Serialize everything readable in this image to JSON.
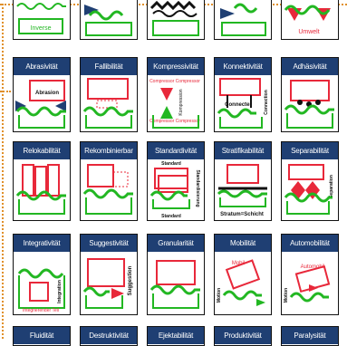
{
  "top_row": {
    "inverse_label": "Inverse",
    "umwelt_label": "Umwelt"
  },
  "row1": {
    "abrasivitaet": "Abrasivität",
    "abrasion_label": "Abrasion",
    "fallibilitaet": "Fallibilität",
    "kompressivitaet": "Kompressivität",
    "compressor_label_top": "Compressor Compressor",
    "compressor_label_bottom": "Compressor Compressor",
    "kompression_vertical": "Kompression",
    "konnektivitaet": "Konnektivität",
    "connecter_label": "Connecter",
    "connection_vertical": "Connection",
    "adhaesivitaet": "Adhäsivität"
  },
  "row2": {
    "relokabilitaet": "Relokabilität",
    "rekombinierbar": "Rekombinierbar",
    "standardivitaet": "Standardivität",
    "standard_top": "Standard",
    "standard_bottom": "Standard",
    "standardisierung_vertical": "Standardisierung",
    "stratifikabilitaet": "Stratifikabilität",
    "stratum_label": "Stratum=Schicht",
    "separabilitaet": "Separabilität",
    "separation_vertical": "Separation"
  },
  "row3": {
    "integrativitaet": "Integrativität",
    "integrierender_teil": "Integrierender Teil",
    "integration_vertical": "Integration",
    "suggestivitaet": "Suggestivität",
    "suggestion_vertical": "Suggestion",
    "granularitaet": "Granularität",
    "mobilitaet": "Mobilität",
    "mobil_label": "Mobil",
    "motion_vertical": "Motion",
    "automobilitaet": "Automobilität",
    "automobil_label": "Automobil",
    "motion2_vertical": "Motion"
  },
  "row4": {
    "fluiditaet": "Fluidität",
    "destruktivitaet": "Destruktivität",
    "ejektabilitaet": "Ejektabilität",
    "produktivitaet": "Produktivität",
    "paralysitaet": "Paralysität"
  },
  "colors": {
    "header_bg": "#1f3f73",
    "green": "#22b722",
    "red": "#e8283a",
    "dark": "#1a1a1a",
    "dotted": "#e0902a"
  }
}
